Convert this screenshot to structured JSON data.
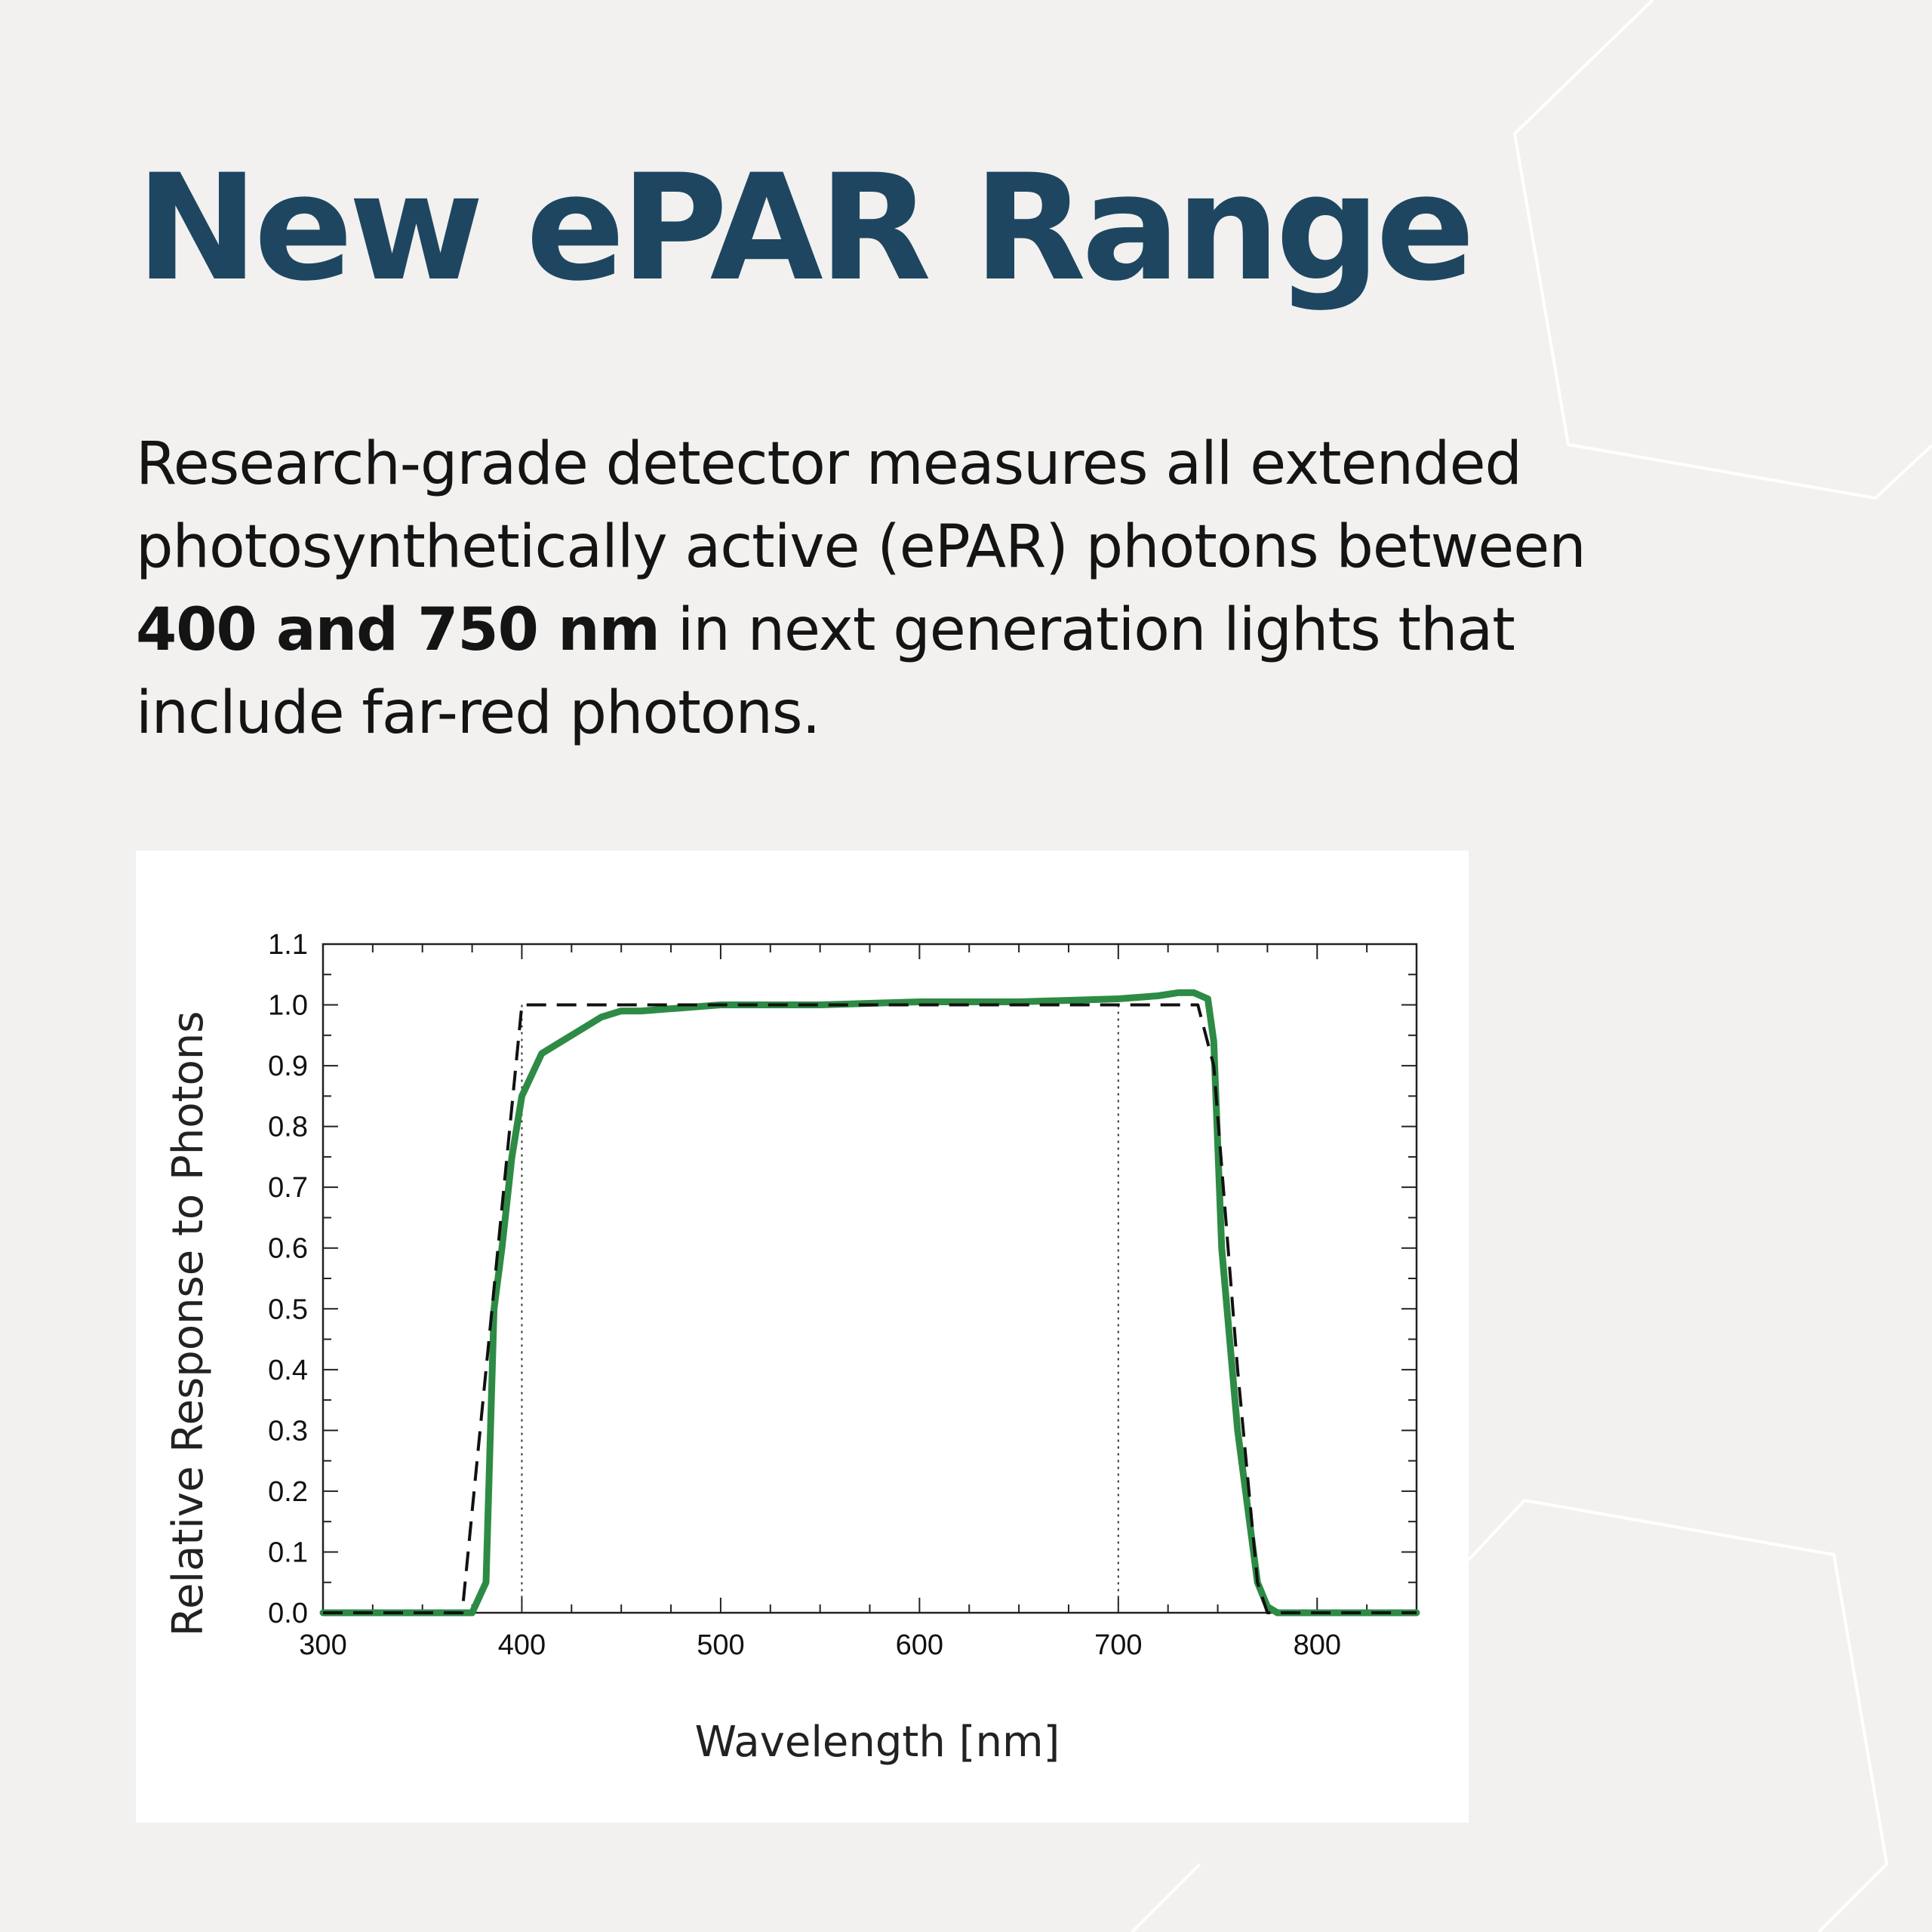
{
  "title": "New ePAR Range",
  "description": {
    "before": "Research-grade detector measures all extended photosynthetically active (ePAR) photons between ",
    "highlight": "400 and 750 nm",
    "after": " in next generation lights that include far-red photons."
  },
  "colors": {
    "title": "#1e4661",
    "text": "#141414",
    "background": "#f2f1ef",
    "measured_line": "#2e8b45",
    "ideal_line": "#111111"
  },
  "chart_data": {
    "type": "line",
    "xlabel": "Wavelength [nm]",
    "ylabel": "Relative Response to Photons",
    "xlim": [
      300,
      850
    ],
    "ylim": [
      0,
      1.1
    ],
    "x_ticks": [
      300,
      400,
      500,
      600,
      700,
      800
    ],
    "y_ticks": [
      "0.0",
      "0.1",
      "0.2",
      "0.3",
      "0.4",
      "0.5",
      "0.6",
      "0.7",
      "0.8",
      "0.9",
      "1.0",
      "1.1"
    ],
    "grid": false,
    "legend": "none",
    "reference_lines_x": [
      400,
      700
    ],
    "series": [
      {
        "style": "solid-green",
        "x": [
          300,
          370,
          375,
          382,
          386,
          390,
          395,
          400,
          410,
          420,
          430,
          440,
          450,
          460,
          480,
          500,
          550,
          600,
          650,
          700,
          720,
          730,
          738,
          745,
          748,
          752,
          760,
          770,
          775,
          780,
          800,
          850
        ],
        "y": [
          0.0,
          0.0,
          0.0,
          0.05,
          0.5,
          0.6,
          0.75,
          0.85,
          0.92,
          0.94,
          0.96,
          0.98,
          0.99,
          0.99,
          0.995,
          1.0,
          1.0,
          1.005,
          1.005,
          1.01,
          1.015,
          1.02,
          1.02,
          1.01,
          0.94,
          0.6,
          0.3,
          0.05,
          0.01,
          0.0,
          0.0,
          0.0
        ]
      },
      {
        "style": "dashed-black",
        "x": [
          300,
          370,
          400,
          740,
          748,
          760,
          770,
          775,
          850
        ],
        "y": [
          0.0,
          0.0,
          1.0,
          1.0,
          0.9,
          0.4,
          0.05,
          0.0,
          0.0
        ]
      }
    ]
  }
}
